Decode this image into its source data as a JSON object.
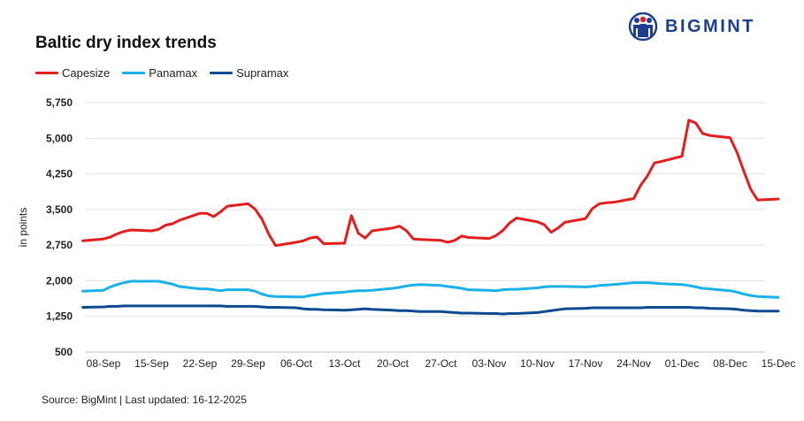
{
  "chart_data": {
    "type": "line",
    "title": "Baltic dry index trends",
    "ylabel": "in points",
    "xlabel": "",
    "ylim": [
      500,
      5750
    ],
    "yticks": [
      500,
      1250,
      2000,
      2750,
      3500,
      4250,
      5000,
      5750
    ],
    "ytick_labels": [
      "500",
      "1,250",
      "2,000",
      "2,750",
      "3,500",
      "4,250",
      "5,000",
      "5,750"
    ],
    "legend_position": "top-left",
    "grid": "horizontal",
    "x_tick_labels": [
      "08-Sep",
      "15-Sep",
      "22-Sep",
      "29-Sep",
      "06-Oct",
      "13-Oct",
      "20-Oct",
      "27-Oct",
      "03-Nov",
      "10-Nov",
      "17-Nov",
      "24-Nov",
      "01-Dec",
      "08-Dec",
      "15-Dec"
    ],
    "x": [
      "05-Sep",
      "08-Sep",
      "09-Sep",
      "10-Sep",
      "11-Sep",
      "12-Sep",
      "15-Sep",
      "16-Sep",
      "17-Sep",
      "18-Sep",
      "19-Sep",
      "22-Sep",
      "23-Sep",
      "24-Sep",
      "25-Sep",
      "26-Sep",
      "29-Sep",
      "30-Sep",
      "01-Oct",
      "02-Oct",
      "03-Oct",
      "06-Oct",
      "07-Oct",
      "08-Oct",
      "09-Oct",
      "10-Oct",
      "13-Oct",
      "14-Oct",
      "15-Oct",
      "16-Oct",
      "17-Oct",
      "20-Oct",
      "21-Oct",
      "22-Oct",
      "23-Oct",
      "24-Oct",
      "27-Oct",
      "28-Oct",
      "29-Oct",
      "30-Oct",
      "31-Oct",
      "03-Nov",
      "04-Nov",
      "05-Nov",
      "06-Nov",
      "07-Nov",
      "10-Nov",
      "11-Nov",
      "12-Nov",
      "13-Nov",
      "14-Nov",
      "17-Nov",
      "18-Nov",
      "19-Nov",
      "20-Nov",
      "21-Nov",
      "24-Nov",
      "25-Nov",
      "26-Nov",
      "27-Nov",
      "28-Nov",
      "01-Dec",
      "02-Dec",
      "03-Dec",
      "04-Dec",
      "05-Dec",
      "08-Dec",
      "09-Dec",
      "10-Dec",
      "11-Dec",
      "12-Dec",
      "15-Dec"
    ],
    "series": [
      {
        "name": "Capesize",
        "color": "#e41e1e",
        "values": [
          2840,
          2880,
          2920,
          2990,
          3040,
          3070,
          3050,
          3080,
          3170,
          3200,
          3270,
          3420,
          3420,
          3350,
          3450,
          3570,
          3620,
          3510,
          3300,
          2980,
          2740,
          2810,
          2840,
          2900,
          2920,
          2780,
          2790,
          3370,
          3000,
          2900,
          3050,
          3110,
          3150,
          3050,
          2880,
          2870,
          2850,
          2810,
          2850,
          2940,
          2910,
          2890,
          2950,
          3060,
          3220,
          3320,
          3240,
          3180,
          3020,
          3110,
          3230,
          3310,
          3520,
          3620,
          3640,
          3650,
          3730,
          4010,
          4210,
          4480,
          4510,
          4620,
          5380,
          5320,
          5100,
          5060,
          5010,
          4700,
          4300,
          3920,
          3700,
          3720
        ]
      },
      {
        "name": "Panamax",
        "color": "#1ab0e8",
        "values": [
          1780,
          1800,
          1870,
          1920,
          1960,
          1990,
          1990,
          1990,
          1960,
          1930,
          1880,
          1830,
          1830,
          1810,
          1790,
          1810,
          1810,
          1780,
          1720,
          1680,
          1670,
          1660,
          1660,
          1690,
          1710,
          1730,
          1760,
          1780,
          1790,
          1790,
          1800,
          1840,
          1860,
          1890,
          1910,
          1920,
          1900,
          1880,
          1860,
          1840,
          1810,
          1800,
          1790,
          1810,
          1820,
          1820,
          1850,
          1870,
          1880,
          1880,
          1880,
          1870,
          1880,
          1900,
          1910,
          1920,
          1960,
          1960,
          1960,
          1950,
          1940,
          1920,
          1900,
          1870,
          1840,
          1830,
          1790,
          1760,
          1720,
          1690,
          1670,
          1650
        ]
      },
      {
        "name": "Supramax",
        "color": "#0d4a8f",
        "values": [
          1440,
          1450,
          1460,
          1460,
          1470,
          1470,
          1470,
          1470,
          1470,
          1470,
          1470,
          1470,
          1470,
          1470,
          1470,
          1460,
          1460,
          1460,
          1450,
          1440,
          1440,
          1430,
          1410,
          1400,
          1400,
          1390,
          1380,
          1390,
          1400,
          1410,
          1400,
          1380,
          1370,
          1370,
          1360,
          1350,
          1350,
          1340,
          1330,
          1320,
          1320,
          1310,
          1310,
          1300,
          1310,
          1310,
          1330,
          1350,
          1370,
          1390,
          1410,
          1420,
          1430,
          1430,
          1430,
          1430,
          1430,
          1430,
          1440,
          1440,
          1440,
          1440,
          1440,
          1430,
          1430,
          1420,
          1410,
          1400,
          1380,
          1370,
          1360,
          1360
        ]
      }
    ]
  },
  "brand": {
    "name": "BIGMINT",
    "logo_color": "#1c3f8f"
  },
  "footer": {
    "source": "Source: BigMint | Last updated: 16-12-2025"
  }
}
